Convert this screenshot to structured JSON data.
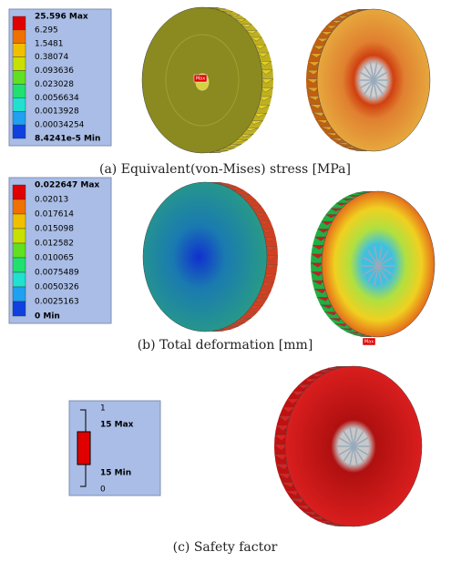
{
  "panels": [
    {
      "legend": [
        "25.596 Max",
        "6.295",
        "1.5481",
        "0.38074",
        "0.093636",
        "0.023028",
        "0.0056634",
        "0.0013928",
        "0.00034254",
        "8.4241e-5 Min"
      ],
      "tags": [
        "Max"
      ],
      "caption": "(a) Equivalent(von-Mises) stress [MPa]"
    },
    {
      "legend": [
        "0.022647 Max",
        "0.02013",
        "0.017614",
        "0.015098",
        "0.012582",
        "0.010065",
        "0.0075489",
        "0.0050326",
        "0.0025163",
        "0 Min"
      ],
      "tags": [
        "Max"
      ],
      "caption": "(b) Total deformation [mm]"
    },
    {
      "legend": [
        "1",
        "15 Max",
        "15 Min",
        "0"
      ],
      "caption": "(c) Safety factor"
    }
  ]
}
